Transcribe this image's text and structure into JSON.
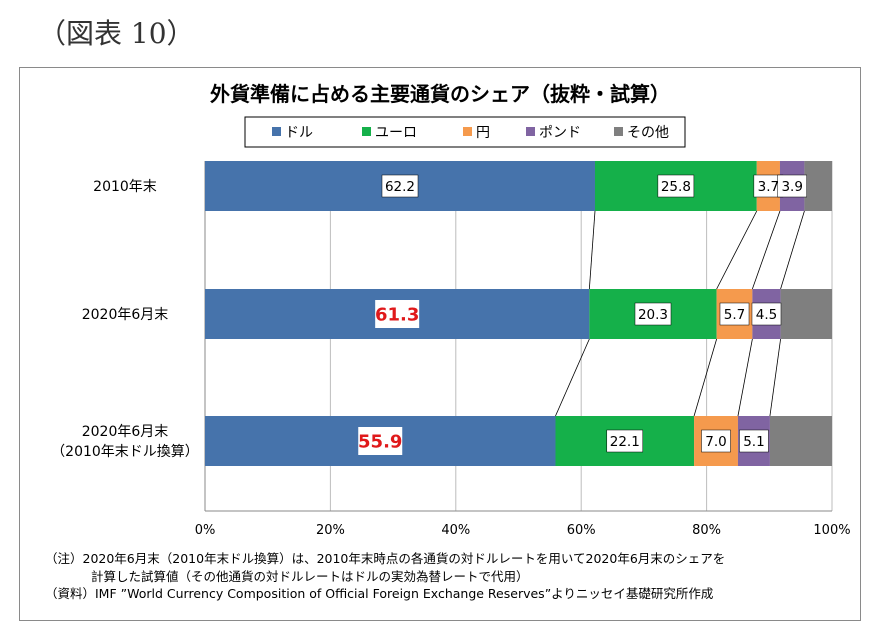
{
  "figure_label": "（図表 10）",
  "chart_data": {
    "type": "bar",
    "orientation": "horizontal",
    "stacked": "100%",
    "title": "外貨準備に占める主要通貨のシェア（抜粋・試算）",
    "categories": [
      "2010年末",
      "2020年6月末",
      "2020年6月末\n（2010年末ドル換算）"
    ],
    "series": [
      {
        "name": "ドル",
        "color": "#4673ab",
        "values": [
          62.2,
          61.3,
          55.9
        ]
      },
      {
        "name": "ユーロ",
        "color": "#15b04a",
        "values": [
          25.8,
          20.3,
          22.1
        ]
      },
      {
        "name": "円",
        "color": "#f59a4d",
        "values": [
          3.7,
          5.7,
          7.0
        ]
      },
      {
        "name": "ポンド",
        "color": "#8064a2",
        "values": [
          3.9,
          4.5,
          5.1
        ]
      },
      {
        "name": "その他",
        "color": "#7f7f7f",
        "values": [
          4.4,
          8.2,
          9.9
        ]
      }
    ],
    "data_labels": [
      {
        "series": 0,
        "cat": 0,
        "text": "62.2",
        "highlight": false
      },
      {
        "series": 1,
        "cat": 0,
        "text": "25.8",
        "highlight": false
      },
      {
        "series": 2,
        "cat": 0,
        "text": "3.7",
        "highlight": false
      },
      {
        "series": 3,
        "cat": 0,
        "text": "3.9",
        "highlight": false
      },
      {
        "series": 0,
        "cat": 1,
        "text": "61.3",
        "highlight": true
      },
      {
        "series": 1,
        "cat": 1,
        "text": "20.3",
        "highlight": false
      },
      {
        "series": 2,
        "cat": 1,
        "text": "5.7",
        "highlight": false
      },
      {
        "series": 3,
        "cat": 1,
        "text": "4.5",
        "highlight": false
      },
      {
        "series": 0,
        "cat": 2,
        "text": "55.9",
        "highlight": true
      },
      {
        "series": 1,
        "cat": 2,
        "text": "22.1",
        "highlight": false
      },
      {
        "series": 2,
        "cat": 2,
        "text": "7.0",
        "highlight": false
      },
      {
        "series": 3,
        "cat": 2,
        "text": "5.1",
        "highlight": false
      }
    ],
    "x_ticks": [
      "0%",
      "20%",
      "40%",
      "60%",
      "80%",
      "100%"
    ],
    "xlim": [
      0,
      100
    ],
    "grid": true,
    "legend_position": "top",
    "highlight_color": "#e0191b",
    "series_lines": true
  },
  "notes": {
    "note_line1": "（注）2020年6月末（2010年末ドル換算）は、2010年末時点の各通貨の対ドルレートを用いて2020年6月末のシェアを",
    "note_line2": "計算した試算値（その他通貨の対ドルレートはドルの実効為替レートで代用）",
    "source": "（資料）IMF ”World Currency Composition of Official Foreign Exchange Reserves”よりニッセイ基礎研究所作成"
  }
}
